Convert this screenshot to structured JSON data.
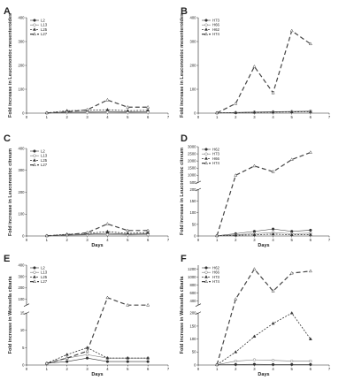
{
  "chart_data": [
    {
      "panel": "A",
      "type": "line",
      "xlabel": "",
      "ylabel": "Fold increase in Leuconostoc mesenteroides",
      "xlim": [
        0,
        7
      ],
      "ylim": [
        0,
        400
      ],
      "xticks": [
        "0",
        "1",
        "2",
        "3",
        "4",
        "5",
        "6",
        "7"
      ],
      "yticks": [
        "0",
        "100",
        "200",
        "300",
        "400"
      ],
      "legend_position": "top-left",
      "series": [
        {
          "name": "L2",
          "x": [
            1,
            2,
            3,
            4,
            5,
            6
          ],
          "y": [
            1,
            3,
            5,
            6,
            5,
            6
          ]
        },
        {
          "name": "L13",
          "x": [
            1,
            2,
            3,
            4,
            5,
            6
          ],
          "y": [
            1,
            2,
            3,
            4,
            3,
            4
          ]
        },
        {
          "name": "L25",
          "x": [
            1,
            2,
            3,
            4,
            5,
            6
          ],
          "y": [
            1,
            10,
            12,
            14,
            10,
            12
          ]
        },
        {
          "name": "L27",
          "x": [
            1,
            2,
            3,
            4,
            5,
            6
          ],
          "y": [
            1,
            5,
            14,
            55,
            25,
            25
          ]
        }
      ]
    },
    {
      "panel": "B",
      "type": "line",
      "xlabel": "",
      "ylabel": "Fold increase in Leuconostoc mesenteroides",
      "xlim": [
        0,
        7
      ],
      "ylim": [
        0,
        400
      ],
      "xticks": [
        "0",
        "1",
        "2",
        "3",
        "4",
        "5",
        "6",
        "7"
      ],
      "yticks": [
        "0",
        "100",
        "200",
        "300",
        "400"
      ],
      "legend_position": "top-left",
      "series": [
        {
          "name": "H73",
          "x": [
            1,
            2,
            3,
            4,
            5,
            6
          ],
          "y": [
            1,
            2,
            4,
            5,
            6,
            8
          ]
        },
        {
          "name": "H66",
          "x": [
            1,
            2,
            3,
            4,
            5,
            6
          ],
          "y": [
            1,
            3,
            5,
            6,
            7,
            9
          ]
        },
        {
          "name": "H62",
          "x": [
            1,
            2,
            3,
            4,
            5,
            6
          ],
          "y": [
            1,
            2,
            3,
            4,
            5,
            6
          ]
        },
        {
          "name": "H74",
          "x": [
            1,
            2,
            3,
            4,
            5,
            6
          ],
          "y": [
            1,
            40,
            195,
            85,
            345,
            290
          ]
        }
      ]
    },
    {
      "panel": "C",
      "type": "line",
      "xlabel": "Days",
      "ylabel": "Fold increase in Leuconostoc citreum",
      "xlim": [
        0,
        7
      ],
      "ylim": [
        0,
        400
      ],
      "xticks": [
        "0",
        "1",
        "2",
        "3",
        "4",
        "5",
        "6",
        "7"
      ],
      "yticks": [
        "0",
        "100",
        "200",
        "300",
        "400"
      ],
      "legend_position": "top-left",
      "series": [
        {
          "name": "L2",
          "x": [
            1,
            2,
            3,
            4,
            5,
            6
          ],
          "y": [
            1,
            5,
            8,
            12,
            8,
            10
          ]
        },
        {
          "name": "L13",
          "x": [
            1,
            2,
            3,
            4,
            5,
            6
          ],
          "y": [
            1,
            3,
            5,
            6,
            5,
            6
          ]
        },
        {
          "name": "L25",
          "x": [
            1,
            2,
            3,
            4,
            5,
            6
          ],
          "y": [
            1,
            8,
            12,
            20,
            12,
            15
          ]
        },
        {
          "name": "L27",
          "x": [
            1,
            2,
            3,
            4,
            5,
            6
          ],
          "y": [
            1,
            5,
            15,
            55,
            25,
            25
          ]
        }
      ]
    },
    {
      "panel": "D",
      "type": "line",
      "xlabel": "Days",
      "ylabel": "Fold increase in Leuconostoc citreum",
      "xlim": [
        0,
        7
      ],
      "broken_axis": true,
      "lower_ylim": [
        0,
        200
      ],
      "upper_ylim": [
        500,
        3000
      ],
      "xticks": [
        "0",
        "1",
        "2",
        "3",
        "4",
        "5",
        "6",
        "7"
      ],
      "yticks_lower": [
        "0",
        "50",
        "100",
        "150",
        "200"
      ],
      "yticks_upper": [
        "500",
        "1000",
        "1500",
        "2000",
        "2500",
        "3000"
      ],
      "legend_position": "top-left",
      "series": [
        {
          "name": "H62",
          "x": [
            1,
            2,
            3,
            4,
            5,
            6
          ],
          "y": [
            1,
            10,
            20,
            30,
            20,
            25
          ]
        },
        {
          "name": "H73",
          "x": [
            1,
            2,
            3,
            4,
            5,
            6
          ],
          "y": [
            1,
            5,
            10,
            15,
            10,
            12
          ]
        },
        {
          "name": "H66",
          "x": [
            1,
            2,
            3,
            4,
            5,
            6
          ],
          "y": [
            1,
            3,
            5,
            8,
            5,
            6
          ]
        },
        {
          "name": "H74",
          "x": [
            1,
            2,
            3,
            4,
            5,
            6
          ],
          "y": [
            1,
            1000,
            1650,
            1250,
            2100,
            2600
          ]
        }
      ]
    },
    {
      "panel": "E",
      "type": "line",
      "xlabel": "Days",
      "ylabel": "Fold increase in Weissella cibaria",
      "xlim": [
        0,
        7
      ],
      "broken_axis": true,
      "lower_ylim": [
        0,
        15
      ],
      "upper_ylim": [
        50,
        400
      ],
      "xticks": [
        "0",
        "1",
        "2",
        "3",
        "4",
        "5",
        "6",
        "7"
      ],
      "yticks_lower": [
        "0",
        "5",
        "10",
        "15"
      ],
      "yticks_upper": [
        "100",
        "200",
        "300",
        "400"
      ],
      "legend_position": "top-left",
      "series": [
        {
          "name": "L2",
          "x": [
            1,
            2,
            3,
            4,
            5,
            6
          ],
          "y": [
            0.5,
            1,
            2,
            1,
            1,
            1
          ]
        },
        {
          "name": "L13",
          "x": [
            1,
            2,
            3,
            4,
            5,
            6
          ],
          "y": [
            0.5,
            2,
            3,
            2,
            2,
            2
          ]
        },
        {
          "name": "L25",
          "x": [
            1,
            2,
            3,
            4,
            5,
            6
          ],
          "y": [
            0.5,
            3,
            5,
            2,
            2,
            2
          ]
        },
        {
          "name": "L27",
          "x": [
            1,
            2,
            3,
            4,
            5,
            6
          ],
          "y": [
            0.5,
            2,
            4,
            115,
            50,
            50
          ]
        }
      ]
    },
    {
      "panel": "F",
      "type": "line",
      "xlabel": "Days",
      "ylabel": "Fold increase in Weissella cibaria",
      "xlim": [
        0,
        7
      ],
      "broken_axis": true,
      "lower_ylim": [
        0,
        200
      ],
      "upper_ylim": [
        300,
        1300
      ],
      "xticks": [
        "0",
        "1",
        "2",
        "3",
        "4",
        "5",
        "6",
        "7"
      ],
      "yticks_lower": [
        "0",
        "50",
        "100",
        "150",
        "200"
      ],
      "yticks_upper": [
        "400",
        "600",
        "800",
        "1000",
        "1200"
      ],
      "legend_position": "top-left",
      "series": [
        {
          "name": "H62",
          "x": [
            1,
            2,
            3,
            4,
            5,
            6
          ],
          "y": [
            1,
            2,
            3,
            2,
            2,
            2
          ]
        },
        {
          "name": "H66",
          "x": [
            1,
            2,
            3,
            4,
            5,
            6
          ],
          "y": [
            1,
            15,
            20,
            18,
            15,
            15
          ]
        },
        {
          "name": "H73",
          "x": [
            1,
            2,
            3,
            4,
            5,
            6
          ],
          "y": [
            1,
            50,
            110,
            160,
            200,
            100
          ]
        },
        {
          "name": "H74",
          "x": [
            1,
            2,
            3,
            4,
            5,
            6
          ],
          "y": [
            1,
            450,
            1200,
            650,
            1100,
            1150
          ]
        }
      ]
    }
  ]
}
